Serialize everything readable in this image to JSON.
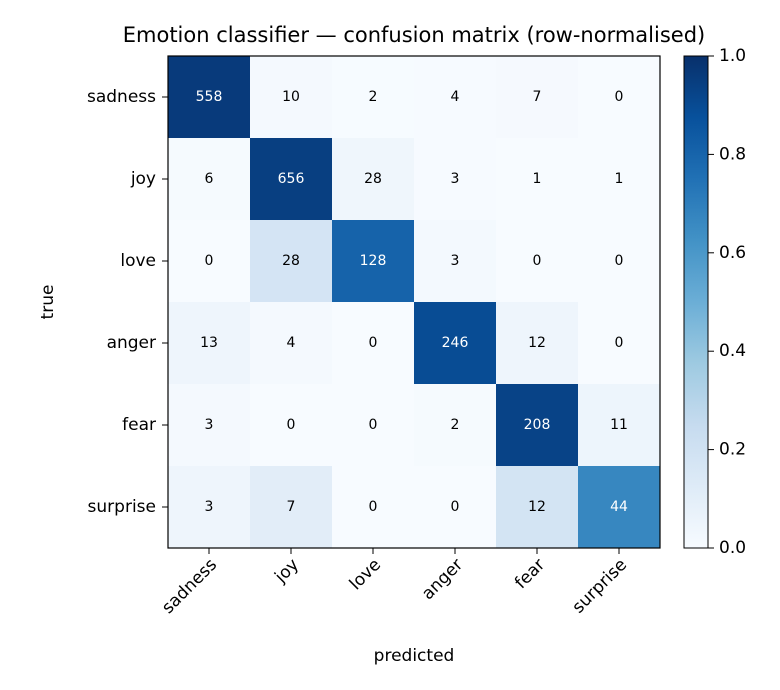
{
  "chart_data": {
    "type": "heatmap",
    "title": "Emotion classifier — confusion matrix (row-normalised)",
    "x_label": "predicted",
    "y_label": "true",
    "x_categories": [
      "sadness",
      "joy",
      "love",
      "anger",
      "fear",
      "surprise"
    ],
    "y_categories": [
      "sadness",
      "joy",
      "love",
      "anger",
      "fear",
      "surprise"
    ],
    "values": [
      [
        558,
        10,
        2,
        4,
        7,
        0
      ],
      [
        6,
        656,
        28,
        3,
        1,
        1
      ],
      [
        0,
        28,
        128,
        3,
        0,
        0
      ],
      [
        13,
        4,
        0,
        246,
        12,
        0
      ],
      [
        3,
        0,
        0,
        2,
        208,
        11
      ],
      [
        3,
        7,
        0,
        0,
        12,
        44
      ]
    ],
    "clim": [
      0,
      1
    ],
    "cticks": [
      {
        "value": 0,
        "label": "0.0"
      },
      {
        "value": 0.2,
        "label": "0.2"
      },
      {
        "value": 0.4,
        "label": "0.4"
      },
      {
        "value": 0.6,
        "label": "0.6"
      },
      {
        "value": 0.8,
        "label": "0.8"
      },
      {
        "value": 1,
        "label": "1.0"
      }
    ]
  }
}
